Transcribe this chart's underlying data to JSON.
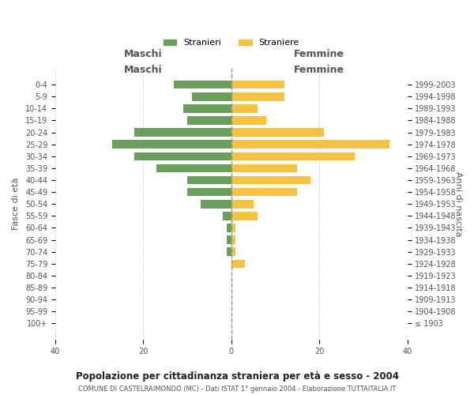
{
  "age_groups": [
    "100+",
    "95-99",
    "90-94",
    "85-89",
    "80-84",
    "75-79",
    "70-74",
    "65-69",
    "60-64",
    "55-59",
    "50-54",
    "45-49",
    "40-44",
    "35-39",
    "30-34",
    "25-29",
    "20-24",
    "15-19",
    "10-14",
    "5-9",
    "0-4"
  ],
  "birth_years": [
    "≤ 1903",
    "1904-1908",
    "1909-1913",
    "1914-1918",
    "1919-1923",
    "1924-1928",
    "1929-1933",
    "1934-1938",
    "1939-1943",
    "1944-1948",
    "1949-1953",
    "1954-1958",
    "1959-1963",
    "1964-1968",
    "1969-1973",
    "1974-1978",
    "1979-1983",
    "1984-1988",
    "1989-1993",
    "1994-1998",
    "1999-2003"
  ],
  "maschi": [
    0,
    0,
    0,
    0,
    0,
    0,
    1,
    1,
    1,
    2,
    7,
    10,
    10,
    17,
    22,
    27,
    22,
    10,
    11,
    9,
    13
  ],
  "femmine": [
    0,
    0,
    0,
    0,
    0,
    3,
    1,
    1,
    1,
    6,
    5,
    15,
    18,
    15,
    28,
    36,
    21,
    8,
    6,
    12,
    12
  ],
  "male_color": "#6a9e5b",
  "female_color": "#f5c242",
  "background_color": "#ffffff",
  "grid_color": "#cccccc",
  "title": "Popolazione per cittadinanza straniera per età e sesso - 2004",
  "subtitle": "COMUNE DI CASTELRAIMONDO (MC) - Dati ISTAT 1° gennaio 2004 - Elaborazione TUTTAITALIA.IT",
  "legend_maschi": "Stranieri",
  "legend_femmine": "Straniere",
  "xlabel_left": "Maschi",
  "xlabel_right": "Femmine",
  "ylabel_left": "Fasce di età",
  "ylabel_right": "Anni di nascita",
  "xlim": 40
}
